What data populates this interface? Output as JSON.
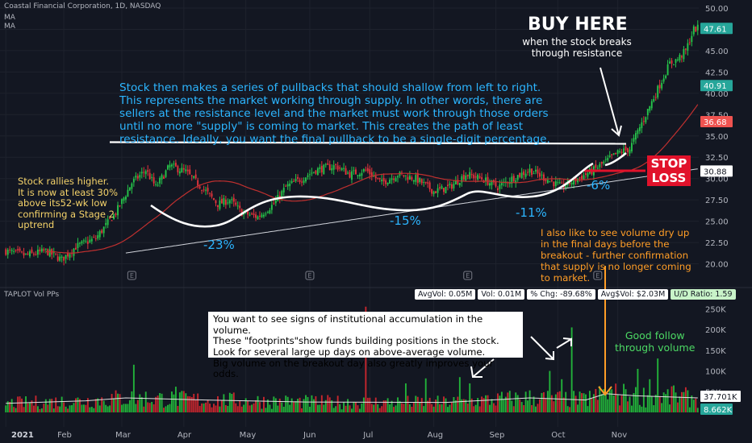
{
  "header": {
    "title": "Coastal Financial Corporation, 1D, NASDAQ",
    "ma1": "MA",
    "ma2": "MA",
    "volume_label": "TAPLOT Vol PPs"
  },
  "stats": [
    "AvgVol: 0.05M",
    "Vol: 0.01M",
    "% Chg: -89.68%",
    "Avg$Vol: $2.03M",
    "U/D Ratio: 1.59"
  ],
  "annotations": {
    "buy_title": "BUY HERE",
    "buy_sub": "when the stock breaks\nthrough resistance",
    "pullbacks": "Stock then makes a series of pullbacks that should shallow from left to right.\nThis represents the market working through supply. In other words, there are\nsellers at the resistance level and the market must work through those orders\nuntil no more \"supply\" is coming to market. This creates the path of least\nresistance. Ideally, you want the final pullback to be a single-digit percentage.",
    "rally": "Stock rallies higher.\nIt is now at least 30%\nabove its52-wk low\nconfirming a Stage 2\nuptrend",
    "stop_loss": "STOP\nLOSS",
    "pb1": "-23%",
    "pb2": "-15%",
    "pb3": "-11%",
    "pb4": "-6%",
    "volume_dry": "I also like to see volume dry up\nin the final days before the\nbreakout - further confirmation\nthat supply is no longer coming\nto market.",
    "accumulation": "You want to see signs of institutional accumulation in the volume.\nThese \"footprints\"show funds building positions in the stock.\nLook for several large up days on above-average volume.\nBig volume on the breakout day also greatly improves your odds.",
    "follow_through": "Good follow\nthrough volume"
  },
  "chart_data": {
    "type": "candlestick",
    "price_axis": {
      "min": 17.5,
      "max": 50.0,
      "ticks": [
        20.0,
        22.5,
        25.0,
        27.5,
        30.0,
        32.5,
        35.0,
        37.5,
        40.0,
        42.5,
        45.0,
        47.5,
        50.0
      ],
      "tick_labels": [
        "20.00",
        "22.50",
        "25.00",
        "27.50",
        "30.00",
        "32.50",
        "35.00",
        "37.50",
        "40.00",
        "42.50",
        "45.00",
        "47.50",
        "50.00"
      ]
    },
    "volume_axis": {
      "min": 0,
      "max": 270000,
      "ticks": [
        50000,
        100000,
        150000,
        200000,
        250000
      ],
      "tick_labels": [
        "50K",
        "100K",
        "150K",
        "200K",
        "250K"
      ]
    },
    "x_axis": {
      "labels": [
        "2021",
        "Feb",
        "Mar",
        "Apr",
        "May",
        "Jun",
        "Jul",
        "Aug",
        "Sep",
        "Oct",
        "Nov"
      ]
    },
    "price_badges": [
      {
        "value": 47.61,
        "label": "47.61",
        "color": "#26a69a"
      },
      {
        "value": 40.91,
        "label": "40.91",
        "color": "#26a69a"
      },
      {
        "value": 36.68,
        "label": "36.68",
        "color": "#ef5350"
      },
      {
        "value": 30.88,
        "label": "30.88",
        "color": "#ffffff"
      }
    ],
    "volume_badges": [
      {
        "value": 37701,
        "label": "37.701K",
        "color": "#ffffff"
      },
      {
        "value": 8662,
        "label": "8.662K",
        "color": "#26a69a"
      }
    ],
    "resistance_level": 33.8,
    "stop_level": 30.88,
    "price_anchors": [
      [
        0,
        21.5
      ],
      [
        10,
        21.0
      ],
      [
        20,
        21.5
      ],
      [
        28,
        20.5
      ],
      [
        35,
        22.0
      ],
      [
        45,
        23.0
      ],
      [
        55,
        26.0
      ],
      [
        63,
        29.5
      ],
      [
        70,
        31.0
      ],
      [
        75,
        29.0
      ],
      [
        82,
        31.5
      ],
      [
        90,
        30.8
      ],
      [
        100,
        28.5
      ],
      [
        106,
        27.0
      ],
      [
        112,
        27.5
      ],
      [
        118,
        26.0
      ],
      [
        126,
        25.5
      ],
      [
        134,
        27.0
      ],
      [
        140,
        29.0
      ],
      [
        148,
        30.0
      ],
      [
        155,
        31.0
      ],
      [
        165,
        31.5
      ],
      [
        172,
        30.5
      ],
      [
        180,
        31.0
      ],
      [
        188,
        29.5
      ],
      [
        196,
        30.5
      ],
      [
        205,
        30.0
      ],
      [
        214,
        28.5
      ],
      [
        222,
        29.0
      ],
      [
        230,
        30.5
      ],
      [
        238,
        30.0
      ],
      [
        246,
        29.0
      ],
      [
        253,
        30.0
      ],
      [
        262,
        31.0
      ],
      [
        270,
        30.0
      ],
      [
        278,
        29.0
      ],
      [
        286,
        30.0
      ],
      [
        294,
        31.0
      ],
      [
        300,
        32.0
      ],
      [
        306,
        33.0
      ],
      [
        312,
        33.5
      ],
      [
        316,
        35.5
      ],
      [
        320,
        37.5
      ],
      [
        324,
        39.5
      ],
      [
        328,
        41.5
      ],
      [
        332,
        43.5
      ],
      [
        336,
        44.0
      ],
      [
        340,
        45.0
      ],
      [
        344,
        47.5
      ],
      [
        346,
        47.61
      ]
    ],
    "volume_profile": [
      [
        0,
        22000
      ],
      [
        40,
        28000
      ],
      [
        60,
        35000
      ],
      [
        100,
        30000
      ],
      [
        150,
        25000
      ],
      [
        220,
        24000
      ],
      [
        262,
        35000
      ],
      [
        290,
        30000
      ],
      [
        300,
        45000
      ],
      [
        315,
        40000
      ],
      [
        346,
        35000
      ]
    ],
    "volume_spikes": [
      [
        64,
        115000,
        "up"
      ],
      [
        85,
        62000,
        "up"
      ],
      [
        180,
        255000,
        "down"
      ],
      [
        200,
        70000,
        "up"
      ],
      [
        210,
        82000,
        "up"
      ],
      [
        227,
        85000,
        "up"
      ],
      [
        232,
        70000,
        "up"
      ],
      [
        272,
        100000,
        "up"
      ],
      [
        278,
        80000,
        "up"
      ],
      [
        283,
        205000,
        "up"
      ],
      [
        292,
        52000,
        "up"
      ],
      [
        310,
        56000,
        "up"
      ],
      [
        316,
        105000,
        "up"
      ],
      [
        322,
        80000,
        "up"
      ],
      [
        326,
        130000,
        "up"
      ],
      [
        334,
        65000,
        "up"
      ]
    ]
  }
}
